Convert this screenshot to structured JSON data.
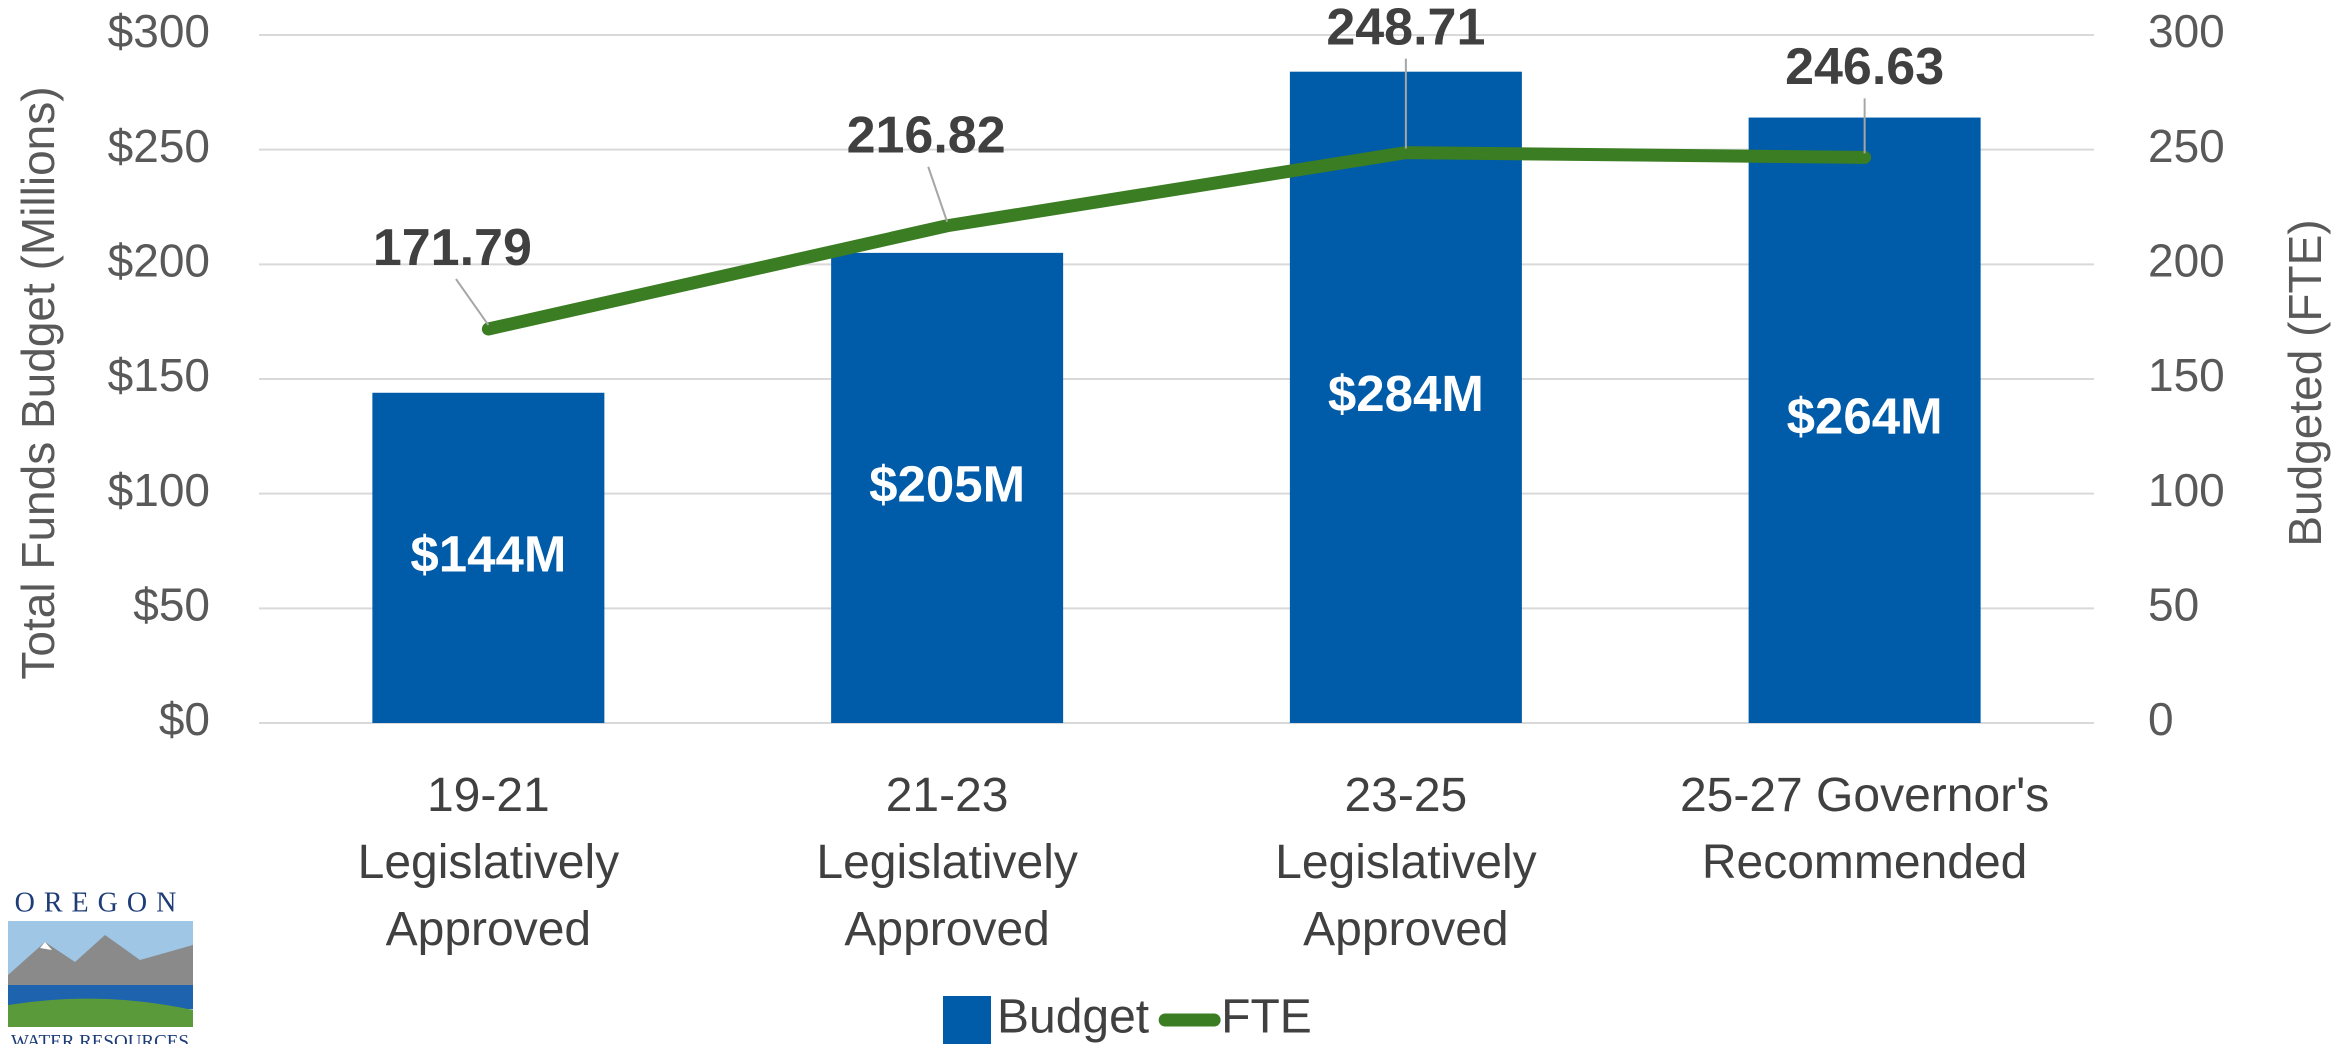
{
  "chart_data": {
    "type": "bar",
    "categories": [
      "19-21\nLegislatively\nApproved",
      "21-23\nLegislatively\nApproved",
      "23-25\nLegislatively\nApproved",
      "25-27 Governor's\nRecommended"
    ],
    "series": [
      {
        "name": "Budget",
        "type": "bar",
        "color": "#005ba9",
        "values": [
          144,
          205,
          284,
          264
        ],
        "value_labels": [
          "$144M",
          "$205M",
          "$284M",
          "$264M"
        ]
      },
      {
        "name": "FTE",
        "type": "line",
        "axis": "y2",
        "color": "#3b7d23",
        "values": [
          171.79,
          216.82,
          248.71,
          246.63
        ]
      }
    ],
    "y_label": "Total Funds Budget (Millions)",
    "y2_label": "Budgeted (FTE)",
    "ylim": [
      0,
      300
    ],
    "yticks": [
      {
        "value": 0,
        "label": "$0"
      },
      {
        "value": 50,
        "label": "$50"
      },
      {
        "value": 100,
        "label": "$100"
      },
      {
        "value": 150,
        "label": "$150"
      },
      {
        "value": 200,
        "label": "$200"
      },
      {
        "value": 250,
        "label": "$250"
      },
      {
        "value": 300,
        "label": "$300"
      }
    ],
    "y2lim": [
      0,
      300
    ],
    "y2ticks": [
      0,
      50,
      100,
      150,
      200,
      250,
      300
    ],
    "grid": true,
    "legend": "bottom"
  },
  "logo": {
    "top": "OREGON",
    "bottom": "WATER RESOURCES"
  }
}
